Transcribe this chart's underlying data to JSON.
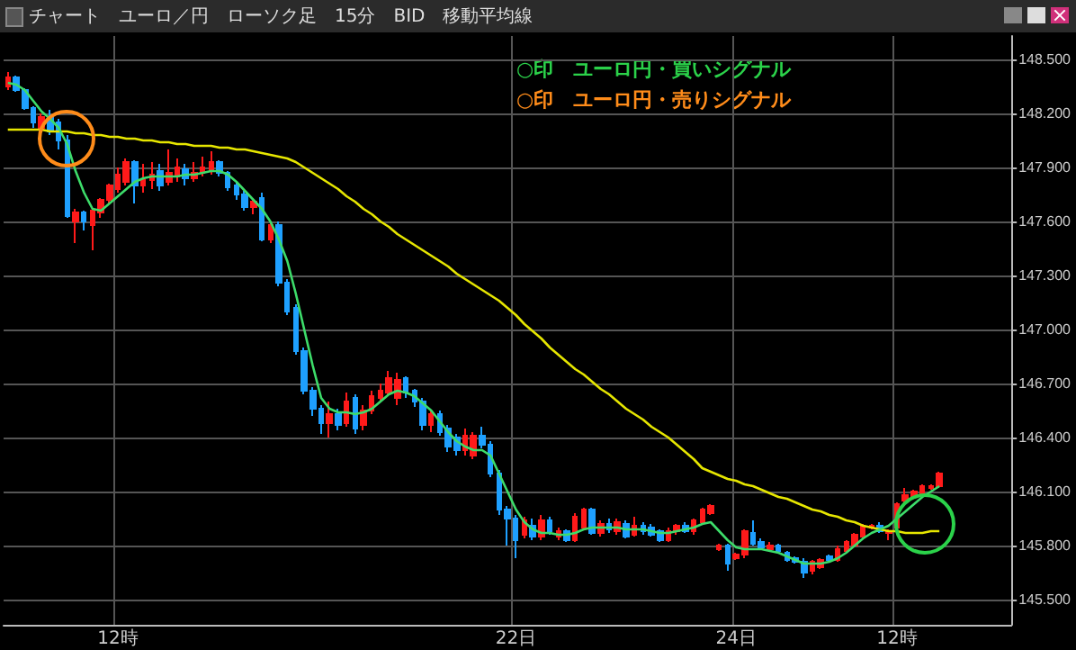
{
  "chart_data": {
    "type": "candlestick",
    "title": "チャート　ユーロ／円　ローソク足　15分　BID　移動平均線",
    "annotations": [
      "○印　ユーロ円・買いシグナル",
      "○印　ユーロ円・売りシグナル"
    ],
    "categories": [
      null,
      null,
      null,
      null,
      null,
      null,
      null,
      null,
      null,
      null,
      null,
      null,
      null,
      "12時",
      null,
      null,
      null,
      null,
      null,
      null,
      null,
      null,
      null,
      null,
      null,
      null,
      null,
      null,
      null,
      null,
      null,
      null,
      null,
      null,
      null,
      null,
      null,
      null,
      null,
      null,
      null,
      null,
      null,
      null,
      null,
      null,
      null,
      null,
      null,
      null,
      null,
      null,
      null,
      null,
      null,
      null,
      null,
      null,
      null,
      null,
      "22日",
      null,
      null,
      null,
      null,
      null,
      null,
      null,
      null,
      null,
      null,
      null,
      null,
      null,
      null,
      null,
      null,
      null,
      null,
      null,
      null,
      null,
      null,
      null,
      null,
      null,
      "24日",
      null,
      null,
      null,
      null,
      null,
      null,
      null,
      null,
      null,
      null,
      null,
      null,
      null,
      null,
      null,
      null,
      null,
      null,
      "12時",
      null,
      null,
      null,
      null,
      null,
      null,
      null,
      null,
      null,
      null,
      null,
      null,
      null
    ],
    "ohlc": [
      [
        148.35,
        148.43,
        148.33,
        148.4
      ],
      [
        148.4,
        148.41,
        148.32,
        148.33
      ],
      [
        148.33,
        148.34,
        148.22,
        148.23
      ],
      [
        148.23,
        148.24,
        148.12,
        148.15
      ],
      [
        148.12,
        148.2,
        148.1,
        148.18
      ],
      [
        148.18,
        148.22,
        148.08,
        148.1
      ],
      [
        148.15,
        148.17,
        148.0,
        148.05
      ],
      [
        148.05,
        148.08,
        147.62,
        147.63
      ],
      [
        147.6,
        147.67,
        147.48,
        147.65
      ],
      [
        147.65,
        147.66,
        147.55,
        147.6
      ],
      [
        147.58,
        147.67,
        147.44,
        147.66
      ],
      [
        147.65,
        147.73,
        147.62,
        147.72
      ],
      [
        147.72,
        147.81,
        147.7,
        147.8
      ],
      [
        147.78,
        147.9,
        147.76,
        147.86
      ],
      [
        147.82,
        147.95,
        147.8,
        147.93
      ],
      [
        147.93,
        147.94,
        147.7,
        147.8
      ],
      [
        147.8,
        147.92,
        147.76,
        147.83
      ],
      [
        147.83,
        147.93,
        147.78,
        147.86
      ],
      [
        147.88,
        147.92,
        147.77,
        147.8
      ],
      [
        147.82,
        148.0,
        147.8,
        147.87
      ],
      [
        147.85,
        147.95,
        147.82,
        147.9
      ],
      [
        147.89,
        147.92,
        147.8,
        147.84
      ],
      [
        147.84,
        147.93,
        147.82,
        147.87
      ],
      [
        147.87,
        147.96,
        147.85,
        147.9
      ],
      [
        147.88,
        147.99,
        147.86,
        147.93
      ],
      [
        147.93,
        147.94,
        147.85,
        147.87
      ],
      [
        147.87,
        147.88,
        147.77,
        147.79
      ],
      [
        147.8,
        147.82,
        147.72,
        147.75
      ],
      [
        147.75,
        147.77,
        147.66,
        147.68
      ],
      [
        147.68,
        147.73,
        147.64,
        147.71
      ],
      [
        147.73,
        147.76,
        147.49,
        147.5
      ],
      [
        147.5,
        147.6,
        147.48,
        147.58
      ],
      [
        147.58,
        147.6,
        147.24,
        147.26
      ],
      [
        147.26,
        147.28,
        147.08,
        147.1
      ],
      [
        147.12,
        147.14,
        146.86,
        146.88
      ],
      [
        146.88,
        146.9,
        146.64,
        146.66
      ],
      [
        146.66,
        146.68,
        146.52,
        146.56
      ],
      [
        146.56,
        146.58,
        146.42,
        146.48
      ],
      [
        146.48,
        146.6,
        146.4,
        146.53
      ],
      [
        146.53,
        146.56,
        146.44,
        146.47
      ],
      [
        146.48,
        146.65,
        146.46,
        146.6
      ],
      [
        146.62,
        146.64,
        146.42,
        146.45
      ],
      [
        146.47,
        146.58,
        146.44,
        146.55
      ],
      [
        146.55,
        146.66,
        146.53,
        146.63
      ],
      [
        146.62,
        146.7,
        146.6,
        146.66
      ],
      [
        146.65,
        146.77,
        146.63,
        146.73
      ],
      [
        146.62,
        146.76,
        146.58,
        146.72
      ],
      [
        146.73,
        146.74,
        146.62,
        146.65
      ],
      [
        146.66,
        146.67,
        146.57,
        146.6
      ],
      [
        146.6,
        146.62,
        146.44,
        146.47
      ],
      [
        146.47,
        146.55,
        146.43,
        146.53
      ],
      [
        146.53,
        146.55,
        146.41,
        146.43
      ],
      [
        146.45,
        146.47,
        146.32,
        146.35
      ],
      [
        146.4,
        146.42,
        146.3,
        146.33
      ],
      [
        146.33,
        146.45,
        146.3,
        146.41
      ],
      [
        146.3,
        146.43,
        146.28,
        146.41
      ],
      [
        146.41,
        146.46,
        146.34,
        146.36
      ],
      [
        146.36,
        146.38,
        146.18,
        146.2
      ],
      [
        146.2,
        146.22,
        145.97,
        146.0
      ],
      [
        146.0,
        146.02,
        145.8,
        145.95
      ],
      [
        145.95,
        145.97,
        145.73,
        145.83
      ],
      [
        145.86,
        145.96,
        145.84,
        145.94
      ],
      [
        145.91,
        145.95,
        145.83,
        145.85
      ],
      [
        145.85,
        145.97,
        145.83,
        145.94
      ],
      [
        145.94,
        145.96,
        145.86,
        145.88
      ],
      [
        145.85,
        145.9,
        145.83,
        145.88
      ],
      [
        145.88,
        145.89,
        145.82,
        145.83
      ],
      [
        145.83,
        145.98,
        145.82,
        145.96
      ],
      [
        145.9,
        146.01,
        145.89,
        146.0
      ],
      [
        146.0,
        146.01,
        145.86,
        145.87
      ],
      [
        145.87,
        145.94,
        145.85,
        145.92
      ],
      [
        145.92,
        145.95,
        145.87,
        145.89
      ],
      [
        145.88,
        145.95,
        145.86,
        145.93
      ],
      [
        145.92,
        145.94,
        145.84,
        145.85
      ],
      [
        145.86,
        145.96,
        145.85,
        145.91
      ],
      [
        145.91,
        145.93,
        145.86,
        145.88
      ],
      [
        145.9,
        145.92,
        145.85,
        145.86
      ],
      [
        145.88,
        145.89,
        145.82,
        145.83
      ],
      [
        145.83,
        145.9,
        145.82,
        145.88
      ],
      [
        145.88,
        145.92,
        145.86,
        145.91
      ],
      [
        145.91,
        145.93,
        145.87,
        145.88
      ],
      [
        145.88,
        145.95,
        145.86,
        145.94
      ],
      [
        145.93,
        146.01,
        145.92,
        146.0
      ],
      [
        145.98,
        146.03,
        145.97,
        146.02
      ],
      [
        145.78,
        145.81,
        145.77,
        145.8
      ],
      [
        145.8,
        145.81,
        145.66,
        145.7
      ],
      [
        145.73,
        145.76,
        145.72,
        145.75
      ],
      [
        145.75,
        145.89,
        145.73,
        145.88
      ],
      [
        145.87,
        145.94,
        145.8,
        145.81
      ],
      [
        145.82,
        145.84,
        145.78,
        145.79
      ],
      [
        145.78,
        145.82,
        145.77,
        145.8
      ],
      [
        145.8,
        145.81,
        145.76,
        145.77
      ],
      [
        145.76,
        145.77,
        145.71,
        145.72
      ],
      [
        145.73,
        145.74,
        145.7,
        145.71
      ],
      [
        145.71,
        145.73,
        145.62,
        145.65
      ],
      [
        145.66,
        145.72,
        145.64,
        145.71
      ],
      [
        145.68,
        145.73,
        145.67,
        145.72
      ],
      [
        145.74,
        145.75,
        145.71,
        145.72
      ],
      [
        145.72,
        145.8,
        145.71,
        145.78
      ],
      [
        145.77,
        145.83,
        145.76,
        145.82
      ],
      [
        145.8,
        145.87,
        145.79,
        145.86
      ],
      [
        145.85,
        145.92,
        145.84,
        145.91
      ],
      [
        145.9,
        145.92,
        145.89,
        145.91
      ],
      [
        145.91,
        145.93,
        145.87,
        145.88
      ],
      [
        145.87,
        145.89,
        145.83,
        145.88
      ],
      [
        145.9,
        146.04,
        145.89,
        146.03
      ],
      [
        146.05,
        146.12,
        146.04,
        146.08
      ],
      [
        146.07,
        146.11,
        146.06,
        146.1
      ],
      [
        146.08,
        146.14,
        146.07,
        146.13
      ],
      [
        146.12,
        146.14,
        146.11,
        146.13
      ],
      [
        146.13,
        146.21,
        146.12,
        146.2
      ],
      null,
      null,
      null,
      null,
      null,
      null,
      null,
      null
    ],
    "colors": [
      "#ff1a1a",
      "#1ea0ff",
      "#1ea0ff",
      "#1ea0ff",
      "#ff1a1a",
      "#1ea0ff",
      "#1ea0ff",
      "#1ea0ff",
      "#ff1a1a",
      "#1ea0ff",
      "#ff1a1a",
      "#ff1a1a",
      "#ff1a1a",
      "#ff1a1a",
      "#ff1a1a",
      "#1ea0ff",
      "#ff1a1a",
      "#ff1a1a",
      "#1ea0ff",
      "#ff1a1a",
      "#ff1a1a",
      "#1ea0ff",
      "#ff1a1a",
      "#ff1a1a",
      "#ff1a1a",
      "#1ea0ff",
      "#1ea0ff",
      "#1ea0ff",
      "#1ea0ff",
      "#ff1a1a",
      "#1ea0ff",
      "#ff1a1a",
      "#1ea0ff",
      "#1ea0ff",
      "#1ea0ff",
      "#1ea0ff",
      "#1ea0ff",
      "#1ea0ff",
      "#ff1a1a",
      "#1ea0ff",
      "#ff1a1a",
      "#1ea0ff",
      "#ff1a1a",
      "#ff1a1a",
      "#ff1a1a",
      "#ff1a1a",
      "#ff1a1a",
      "#1ea0ff",
      "#1ea0ff",
      "#1ea0ff",
      "#ff1a1a",
      "#1ea0ff",
      "#1ea0ff",
      "#1ea0ff",
      "#ff1a1a",
      "#ff1a1a",
      "#1ea0ff",
      "#1ea0ff",
      "#1ea0ff",
      "#1ea0ff",
      "#1ea0ff",
      "#ff1a1a",
      "#1ea0ff",
      "#ff1a1a",
      "#1ea0ff",
      "#ff1a1a",
      "#1ea0ff",
      "#ff1a1a",
      "#ff1a1a",
      "#1ea0ff",
      "#ff1a1a",
      "#1ea0ff",
      "#ff1a1a",
      "#1ea0ff",
      "#ff1a1a",
      "#1ea0ff",
      "#1ea0ff",
      "#1ea0ff",
      "#ff1a1a",
      "#ff1a1a",
      "#1ea0ff",
      "#ff1a1a",
      "#ff1a1a",
      "#ff1a1a",
      "#ff1a1a",
      "#1ea0ff",
      "#ff1a1a",
      "#ff1a1a",
      "#1ea0ff",
      "#1ea0ff",
      "#ff1a1a",
      "#1ea0ff",
      "#1ea0ff",
      "#1ea0ff",
      "#1ea0ff",
      "#ff1a1a",
      "#ff1a1a",
      "#1ea0ff",
      "#ff1a1a",
      "#ff1a1a",
      "#ff1a1a",
      "#ff1a1a",
      "#ff1a1a",
      "#1ea0ff",
      "#ff1a1a",
      "#ff1a1a",
      "#ff1a1a",
      "#ff1a1a",
      "#ff1a1a",
      "#ff1a1a",
      "#ff1a1a",
      null,
      null,
      null,
      null,
      null,
      null,
      null,
      null
    ],
    "series": [
      {
        "type": "line",
        "color": "#e6e600",
        "values": [
          148.11,
          148.11,
          148.11,
          148.11,
          148.11,
          148.1,
          148.1,
          148.1,
          148.09,
          148.09,
          148.08,
          148.08,
          148.07,
          148.07,
          148.06,
          148.06,
          148.05,
          148.05,
          148.04,
          148.04,
          148.03,
          148.03,
          148.02,
          148.02,
          148.02,
          148.01,
          148.01,
          148.0,
          148.0,
          147.99,
          147.98,
          147.97,
          147.96,
          147.95,
          147.93,
          147.9,
          147.87,
          147.84,
          147.81,
          147.78,
          147.74,
          147.71,
          147.67,
          147.64,
          147.6,
          147.57,
          147.53,
          147.5,
          147.47,
          147.44,
          147.41,
          147.38,
          147.35,
          147.31,
          147.28,
          147.25,
          147.22,
          147.19,
          147.16,
          147.12,
          147.08,
          147.03,
          146.99,
          146.95,
          146.9,
          146.86,
          146.82,
          146.78,
          146.75,
          146.71,
          146.67,
          146.64,
          146.6,
          146.56,
          146.53,
          146.5,
          146.46,
          146.43,
          146.4,
          146.36,
          146.32,
          146.28,
          146.23,
          146.21,
          146.19,
          146.17,
          146.16,
          146.14,
          146.13,
          146.11,
          146.09,
          146.07,
          146.06,
          146.04,
          146.02,
          146.0,
          145.99,
          145.97,
          145.96,
          145.94,
          145.93,
          145.91,
          145.9,
          145.89,
          145.88,
          145.88,
          145.87,
          145.87,
          145.87,
          145.88,
          145.88,
          null,
          null,
          null,
          null,
          null,
          null,
          null,
          null
        ]
      },
      {
        "type": "line",
        "color": "#3ddc6a",
        "values": [
          148.37,
          148.36,
          148.33,
          148.27,
          148.21,
          148.17,
          148.12,
          148.03,
          147.88,
          147.76,
          147.67,
          147.66,
          147.7,
          147.74,
          147.78,
          147.82,
          147.84,
          147.85,
          147.85,
          147.85,
          147.85,
          147.86,
          147.86,
          147.87,
          147.88,
          147.88,
          147.86,
          147.82,
          147.77,
          147.72,
          147.67,
          147.6,
          147.5,
          147.38,
          147.2,
          147.0,
          146.8,
          146.62,
          146.56,
          146.54,
          146.54,
          146.53,
          146.54,
          146.56,
          146.6,
          146.64,
          146.66,
          146.65,
          146.63,
          146.59,
          146.55,
          146.49,
          146.43,
          146.38,
          146.35,
          146.33,
          146.33,
          146.3,
          146.2,
          146.1,
          146.0,
          145.93,
          145.89,
          145.87,
          145.87,
          145.86,
          145.86,
          145.87,
          145.89,
          145.9,
          145.9,
          145.9,
          145.9,
          145.89,
          145.89,
          145.89,
          145.88,
          145.87,
          145.87,
          145.88,
          145.89,
          145.9,
          145.92,
          145.93,
          145.88,
          145.83,
          145.79,
          145.78,
          145.78,
          145.78,
          145.77,
          145.76,
          145.74,
          145.72,
          145.7,
          145.7,
          145.7,
          145.71,
          145.73,
          145.76,
          145.8,
          145.84,
          145.87,
          145.89,
          145.91,
          145.95,
          145.99,
          146.03,
          146.07,
          146.1,
          146.13,
          null,
          null,
          null,
          null,
          null,
          null,
          null,
          null
        ]
      }
    ],
    "ylim": [
      145.36,
      148.63
    ],
    "yticks": [
      {
        "value": 145.5,
        "label": "145.500"
      },
      {
        "value": 145.8,
        "label": "145.800"
      },
      {
        "value": 146.1,
        "label": "146.100"
      },
      {
        "value": 146.4,
        "label": "146.400"
      },
      {
        "value": 146.7,
        "label": "146.700"
      },
      {
        "value": 147.0,
        "label": "147.000"
      },
      {
        "value": 147.3,
        "label": "147.300"
      },
      {
        "value": 147.6,
        "label": "147.600"
      },
      {
        "value": 147.9,
        "label": "147.900"
      },
      {
        "value": 148.2,
        "label": "148.200"
      },
      {
        "value": 148.5,
        "label": "148.500"
      }
    ],
    "grid": true
  }
}
